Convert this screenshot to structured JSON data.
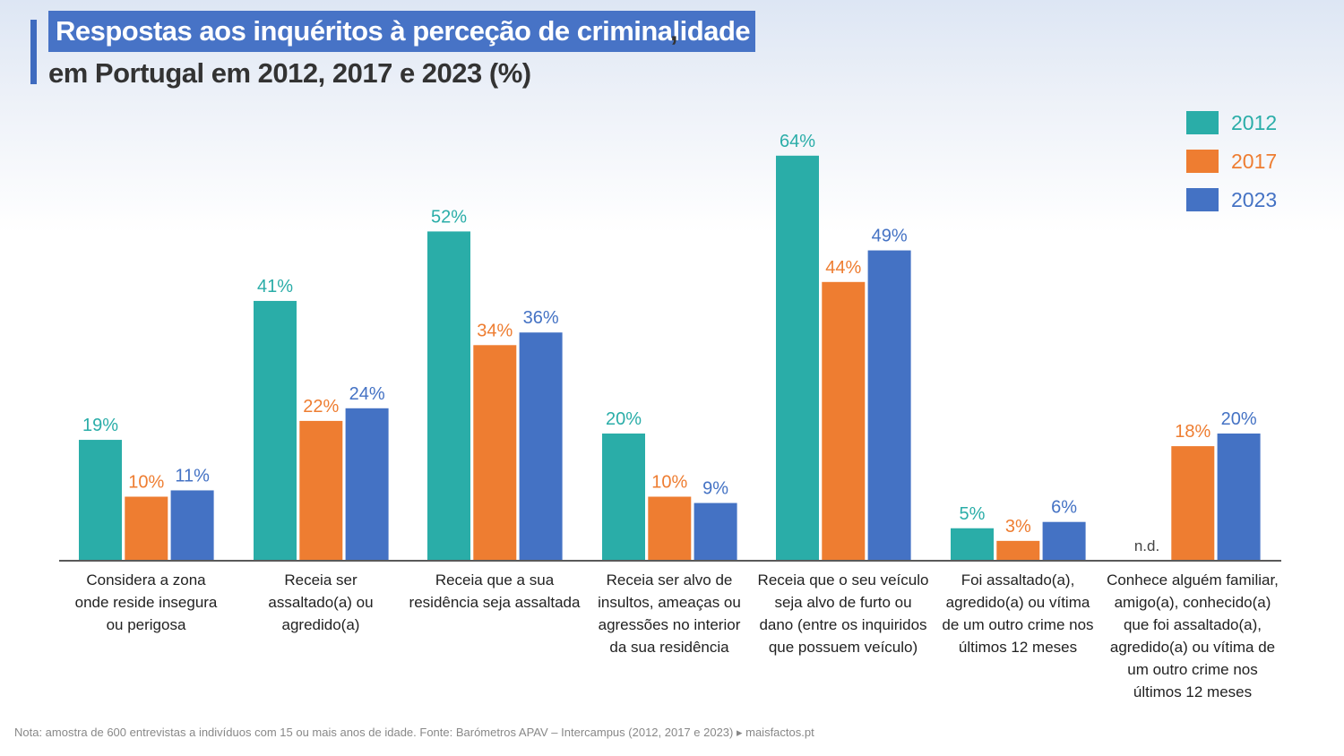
{
  "title": {
    "line1": "Respostas aos inquéritos à perceção de criminalidade",
    "comma": ",",
    "line2": "em Portugal em 2012, 2017 e 2023 (%)"
  },
  "footnote": "Nota: amostra de 600 entrevistas a indivíduos  com 15 ou mais anos de idade. Fonte: Barómetros APAV – Intercampus (2012, 2017 e 2023)  ▸ maisfactos.pt",
  "colors": {
    "2012": "#2aada8",
    "2017": "#ee7d31",
    "2023": "#4472c4"
  },
  "chart_data": {
    "type": "bar",
    "ylim": [
      0,
      70
    ],
    "grid": false,
    "legend_position": "top-right",
    "categories": [
      [
        "Considera a zona",
        "onde reside insegura",
        "ou perigosa"
      ],
      [
        "Receia ser",
        "assaltado(a) ou",
        "agredido(a)"
      ],
      [
        "Receia que a sua",
        "residência seja assaltada"
      ],
      [
        "Receia ser alvo de",
        "insultos, ameaças ou",
        "agressões no interior",
        "da sua residência"
      ],
      [
        "Receia que o seu veículo",
        "seja alvo de furto ou",
        "dano (entre os inquiridos",
        "que possuem veículo)"
      ],
      [
        "Foi assaltado(a),",
        "agredido(a) ou vítima",
        "de um outro crime nos",
        "últimos 12 meses"
      ],
      [
        "Conhece alguém familiar,",
        "amigo(a), conhecido(a)",
        "que foi assaltado(a),",
        "agredido(a) ou vítima de",
        "um outro crime nos",
        "últimos 12 meses"
      ]
    ],
    "series": [
      {
        "name": "2012",
        "values": [
          19,
          41,
          52,
          20,
          64,
          5,
          null
        ],
        "labels": [
          "19%",
          "41%",
          "52%",
          "20%",
          "64%",
          "5%",
          "n.d."
        ]
      },
      {
        "name": "2017",
        "values": [
          10,
          22,
          34,
          10,
          44,
          3,
          18
        ],
        "labels": [
          "10%",
          "22%",
          "34%",
          "10%",
          "44%",
          "3%",
          "18%"
        ]
      },
      {
        "name": "2023",
        "values": [
          11,
          24,
          36,
          9,
          49,
          6,
          20
        ],
        "labels": [
          "11%",
          "24%",
          "36%",
          "9%",
          "49%",
          "6%",
          "20%"
        ]
      }
    ]
  }
}
